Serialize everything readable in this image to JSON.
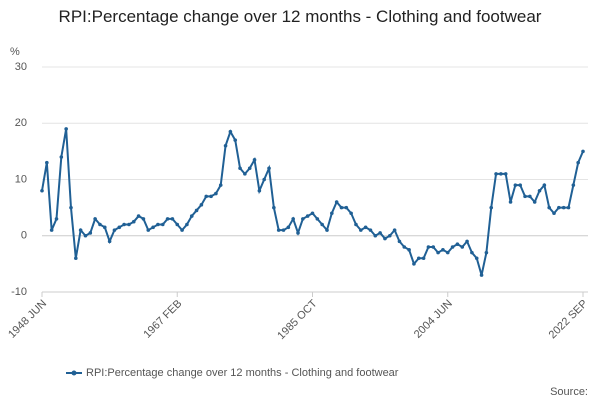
{
  "chart_data": {
    "type": "line",
    "title": "RPI:Percentage change over 12 months - Clothing and footwear",
    "y_unit": "%",
    "source": "Source:",
    "categories": [
      "1948 JUN",
      null,
      null,
      null,
      null,
      null,
      null,
      null,
      null,
      null,
      null,
      null,
      null,
      null,
      null,
      null,
      null,
      null,
      null,
      null,
      null,
      null,
      null,
      null,
      null,
      null,
      null,
      null,
      "1967 FEB",
      null,
      null,
      null,
      null,
      null,
      null,
      null,
      null,
      null,
      null,
      null,
      null,
      null,
      null,
      null,
      null,
      null,
      null,
      null,
      null,
      null,
      null,
      null,
      null,
      null,
      null,
      null,
      "1985 OCT",
      null,
      null,
      null,
      null,
      null,
      null,
      null,
      null,
      null,
      null,
      null,
      null,
      null,
      null,
      null,
      null,
      null,
      null,
      null,
      null,
      null,
      null,
      null,
      null,
      null,
      null,
      null,
      "2004 JUN",
      null,
      null,
      null,
      null,
      null,
      null,
      null,
      null,
      null,
      null,
      null,
      null,
      null,
      null,
      null,
      null,
      null,
      null,
      null,
      null,
      null,
      null,
      null,
      null,
      null,
      null,
      null,
      "2022 SEP"
    ],
    "series": [
      {
        "name": "RPI:Percentage change over 12 months - Clothing and footwear",
        "color": "#206095",
        "values": [
          8,
          13,
          1,
          3,
          14,
          19,
          5,
          -4,
          1,
          0,
          0.5,
          3,
          2,
          1.5,
          -1,
          1,
          1.5,
          2,
          2,
          2.5,
          3.5,
          3,
          1,
          1.5,
          2,
          2,
          3,
          3,
          2,
          1,
          2,
          3.5,
          4.5,
          5.5,
          7,
          7,
          7.5,
          9,
          16,
          18.5,
          17,
          12,
          11,
          12,
          13.5,
          8,
          10,
          12,
          5,
          1,
          1,
          1.5,
          3,
          0.5,
          3,
          3.5,
          4,
          3,
          2,
          1,
          4,
          6,
          5,
          5,
          4,
          2,
          1,
          1.5,
          1,
          0,
          0.5,
          -0.5,
          0,
          1,
          -1,
          -2,
          -2.5,
          -5,
          -4,
          -4,
          -2,
          -2,
          -3,
          -2.5,
          -3,
          -2,
          -1.5,
          -2,
          -1,
          -3,
          -4,
          -7,
          -3,
          5,
          11,
          11,
          11,
          6,
          9,
          9,
          7,
          7,
          6,
          8,
          9,
          5,
          4,
          5,
          5,
          5,
          9,
          13,
          15
        ]
      }
    ],
    "ylim": [
      -10,
      30
    ],
    "yticks": [
      -10,
      0,
      10,
      20,
      30
    ],
    "grid": true
  }
}
